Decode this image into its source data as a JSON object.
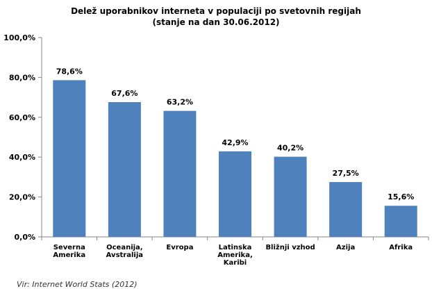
{
  "chart_data": {
    "type": "bar",
    "title": "Delež uporabnikov interneta v populaciji po svetovnih regijah",
    "subtitle": "(stanje na dan 30.06.2012)",
    "categories": [
      [
        "Severna",
        "Amerika"
      ],
      [
        "Oceanija,",
        "Avstralija"
      ],
      [
        "Evropa"
      ],
      [
        "Latinska",
        "Amerika,",
        "Karibi"
      ],
      [
        "Bližnji vzhod"
      ],
      [
        "Azija"
      ],
      [
        "Afrika"
      ]
    ],
    "values": [
      78.6,
      67.6,
      63.2,
      42.9,
      40.2,
      27.5,
      15.6
    ],
    "value_labels": [
      "78,6%",
      "67,6%",
      "63,2%",
      "42,9%",
      "40,2%",
      "27,5%",
      "15,6%"
    ],
    "yticks": [
      0,
      20,
      40,
      60,
      80,
      100
    ],
    "ytick_labels": [
      "0,0%",
      "20,0%",
      "40,0%",
      "60,0%",
      "80,0%",
      "100,0%"
    ],
    "ylim": [
      0,
      100
    ],
    "bar_color": "#4f81bd",
    "grid": false
  },
  "source": "Vir: Internet World Stats (2012)"
}
